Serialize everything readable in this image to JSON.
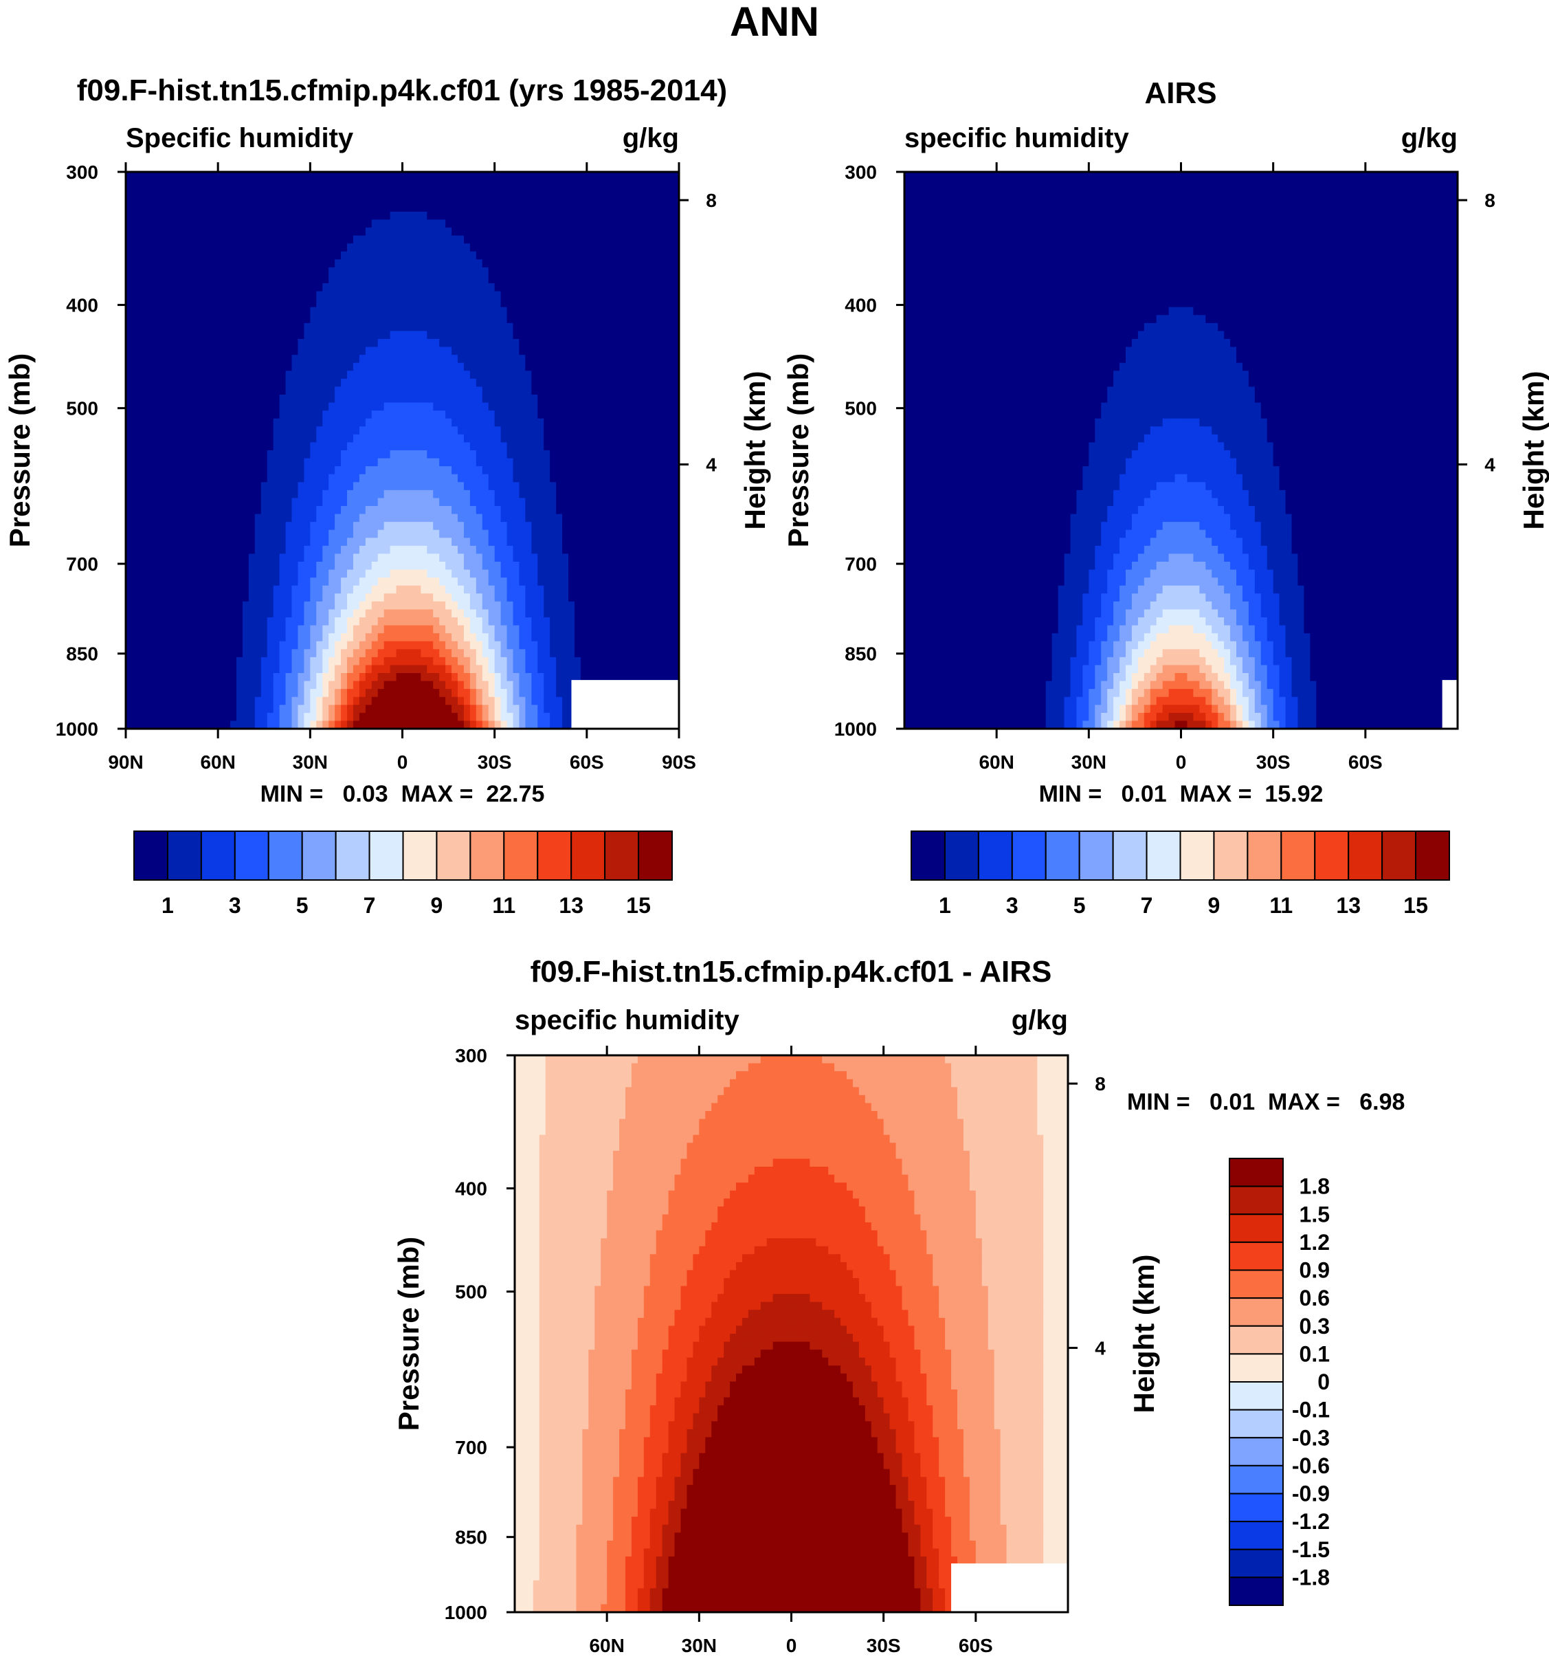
{
  "figure": {
    "title": "ANN"
  },
  "chart_data": [
    {
      "type": "heatmap",
      "panel": "model",
      "title": "f09.F-hist.tn15.cfmip.p4k.cf01 (yrs 1985-2014)",
      "left_string": "Specific humidity",
      "right_string": "g/kg",
      "xlabel": "",
      "ylabel": "Pressure (mb)",
      "y2label": "Height (km)",
      "x_ticks": [
        "90N",
        "60N",
        "30N",
        "0",
        "30S",
        "60S",
        "90S"
      ],
      "y_ticks": [
        "300",
        "400",
        "500",
        "700",
        "850",
        "1000"
      ],
      "y2_ticks": [
        "8",
        "4"
      ],
      "xlim": [
        90,
        -90
      ],
      "ylim": [
        1000,
        300
      ],
      "min_max_text": "MIN =   0.03  MAX =  22.75",
      "min": 0.03,
      "max": 22.75,
      "peak_lat": -2,
      "surface_value": 20.5,
      "width_deg": 33,
      "decay": 0.85,
      "missing_lat": -55,
      "colorbar": {
        "labels": [
          "1",
          "3",
          "5",
          "7",
          "9",
          "11",
          "13",
          "15"
        ],
        "levels": [
          1,
          2,
          3,
          4,
          5,
          6,
          7,
          8,
          9,
          10,
          11,
          12,
          13,
          14,
          15
        ],
        "colors": [
          "#000080",
          "#0022b0",
          "#0a3ae6",
          "#1e55ff",
          "#4a80ff",
          "#7ea4ff",
          "#b4ceff",
          "#dcecff",
          "#fde9d8",
          "#fcc4a8",
          "#fc9c76",
          "#fb6e40",
          "#f3411b",
          "#dd2a0a",
          "#b61b07",
          "#8b0000"
        ]
      }
    },
    {
      "type": "heatmap",
      "panel": "obs",
      "title": "AIRS",
      "left_string": "specific humidity",
      "right_string": "g/kg",
      "xlabel": "",
      "ylabel": "Pressure (mb)",
      "y2label": "Height (km)",
      "x_ticks": [
        "60N",
        "30N",
        "0",
        "30S",
        "60S"
      ],
      "y_ticks": [
        "300",
        "400",
        "500",
        "700",
        "850",
        "1000"
      ],
      "y2_ticks": [
        "8",
        "4"
      ],
      "xlim": [
        90,
        -90
      ],
      "ylim": [
        1000,
        300
      ],
      "min_max_text": "MIN =   0.01  MAX =  15.92",
      "min": 0.01,
      "max": 15.92,
      "peak_lat": 0,
      "surface_value": 15.5,
      "width_deg": 27,
      "decay": 0.95,
      "missing_lat": -85,
      "colorbar": {
        "labels": [
          "1",
          "3",
          "5",
          "7",
          "9",
          "11",
          "13",
          "15"
        ],
        "levels": [
          1,
          2,
          3,
          4,
          5,
          6,
          7,
          8,
          9,
          10,
          11,
          12,
          13,
          14,
          15
        ],
        "colors": [
          "#000080",
          "#0022b0",
          "#0a3ae6",
          "#1e55ff",
          "#4a80ff",
          "#7ea4ff",
          "#b4ceff",
          "#dcecff",
          "#fde9d8",
          "#fcc4a8",
          "#fc9c76",
          "#fb6e40",
          "#f3411b",
          "#dd2a0a",
          "#b61b07",
          "#8b0000"
        ]
      }
    },
    {
      "type": "heatmap",
      "panel": "difference",
      "title": "f09.F-hist.tn15.cfmip.p4k.cf01 - AIRS",
      "left_string": "specific humidity",
      "right_string": "g/kg",
      "xlabel": "",
      "ylabel": "Pressure (mb)",
      "y2label": "Height (km)",
      "x_ticks": [
        "60N",
        "30N",
        "0",
        "30S",
        "60S"
      ],
      "y_ticks": [
        "300",
        "400",
        "500",
        "700",
        "850",
        "1000"
      ],
      "y2_ticks": [
        "8",
        "4"
      ],
      "xlim": [
        90,
        -90
      ],
      "ylim": [
        1000,
        300
      ],
      "min_max_text": "MIN =   0.01  MAX =   6.98",
      "min": 0.01,
      "max": 6.98,
      "peak_lat": 0,
      "surface_value": 5.0,
      "width_deg": 42,
      "decay": 0.55,
      "missing_lat": -52,
      "colorbar": {
        "labels": [
          "1.8",
          "1.5",
          "1.2",
          "0.9",
          "0.6",
          "0.3",
          "0.1",
          "0",
          "-0.1",
          "-0.3",
          "-0.6",
          "-0.9",
          "-1.2",
          "-1.5",
          "-1.8"
        ],
        "levels": [
          -1.8,
          -1.5,
          -1.2,
          -0.9,
          -0.6,
          -0.3,
          -0.1,
          0,
          0.1,
          0.3,
          0.6,
          0.9,
          1.2,
          1.5,
          1.8
        ],
        "colors": [
          "#000080",
          "#0022b0",
          "#0a3ae6",
          "#1e55ff",
          "#4a80ff",
          "#7ea4ff",
          "#b4ceff",
          "#dcecff",
          "#fde9d8",
          "#fcc4a8",
          "#fc9c76",
          "#fb6e40",
          "#f3411b",
          "#dd2a0a",
          "#b61b07",
          "#8b0000"
        ]
      }
    }
  ]
}
